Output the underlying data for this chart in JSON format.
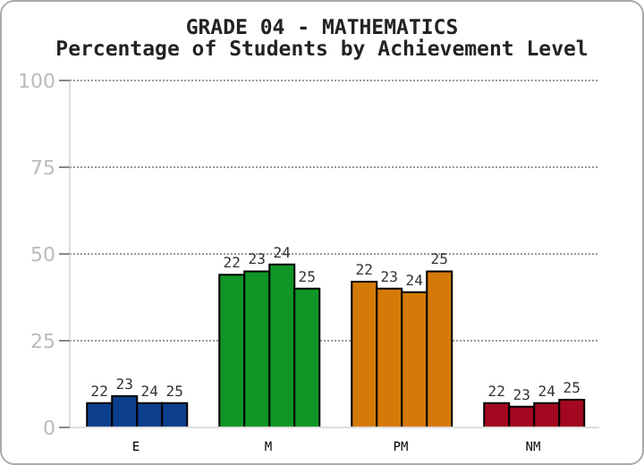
{
  "chart_data": {
    "type": "bar",
    "title": "GRADE 04 - MATHEMATICS",
    "subtitle": "Percentage of Students by Achievement Level",
    "categories": [
      "E",
      "M",
      "PM",
      "NM"
    ],
    "series": [
      {
        "name": "22",
        "colors": [
          "#0b3f8c",
          "#0f9626",
          "#d57a09",
          "#a2081f"
        ],
        "values": [
          7,
          44,
          42,
          7
        ]
      },
      {
        "name": "23",
        "colors": [
          "#0b3f8c",
          "#0f9626",
          "#d57a09",
          "#a2081f"
        ],
        "values": [
          9,
          45,
          40,
          6
        ]
      },
      {
        "name": "24",
        "colors": [
          "#0b3f8c",
          "#0f9626",
          "#d57a09",
          "#a2081f"
        ],
        "values": [
          7,
          47,
          39,
          7
        ]
      },
      {
        "name": "25",
        "colors": [
          "#0b3f8c",
          "#0f9626",
          "#d57a09",
          "#a2081f"
        ],
        "values": [
          7,
          40,
          45,
          8
        ]
      }
    ],
    "ylim": [
      0,
      100
    ],
    "yticks": [
      0,
      25,
      50,
      75,
      100
    ],
    "grid": "y",
    "legend": false
  }
}
